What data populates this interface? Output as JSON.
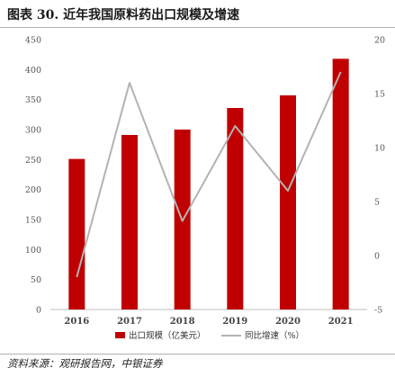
{
  "title": "图表 30. 近年我国原料药出口规模及增速",
  "source": "资料来源：观研报告网，中银证券",
  "chart_data": {
    "type": "bar+line",
    "categories": [
      "2016",
      "2017",
      "2018",
      "2019",
      "2020",
      "2021"
    ],
    "series": [
      {
        "name": "出口规模（亿美元）",
        "type": "bar",
        "axis": "left",
        "color": "#c00000",
        "values": [
          251,
          291,
          300,
          336,
          357,
          418
        ]
      },
      {
        "name": "同比增速（%）",
        "type": "line",
        "axis": "right",
        "color": "#b3b3b3",
        "values": [
          -2,
          16,
          3.2,
          12,
          6,
          17
        ]
      }
    ],
    "ylim_left": [
      0,
      450
    ],
    "yticks_left": [
      0,
      50,
      100,
      150,
      200,
      250,
      300,
      350,
      400,
      450
    ],
    "ylim_right": [
      -5,
      20
    ],
    "yticks_right": [
      -5,
      0,
      5,
      10,
      15,
      20
    ],
    "legend": "bottom-center"
  }
}
